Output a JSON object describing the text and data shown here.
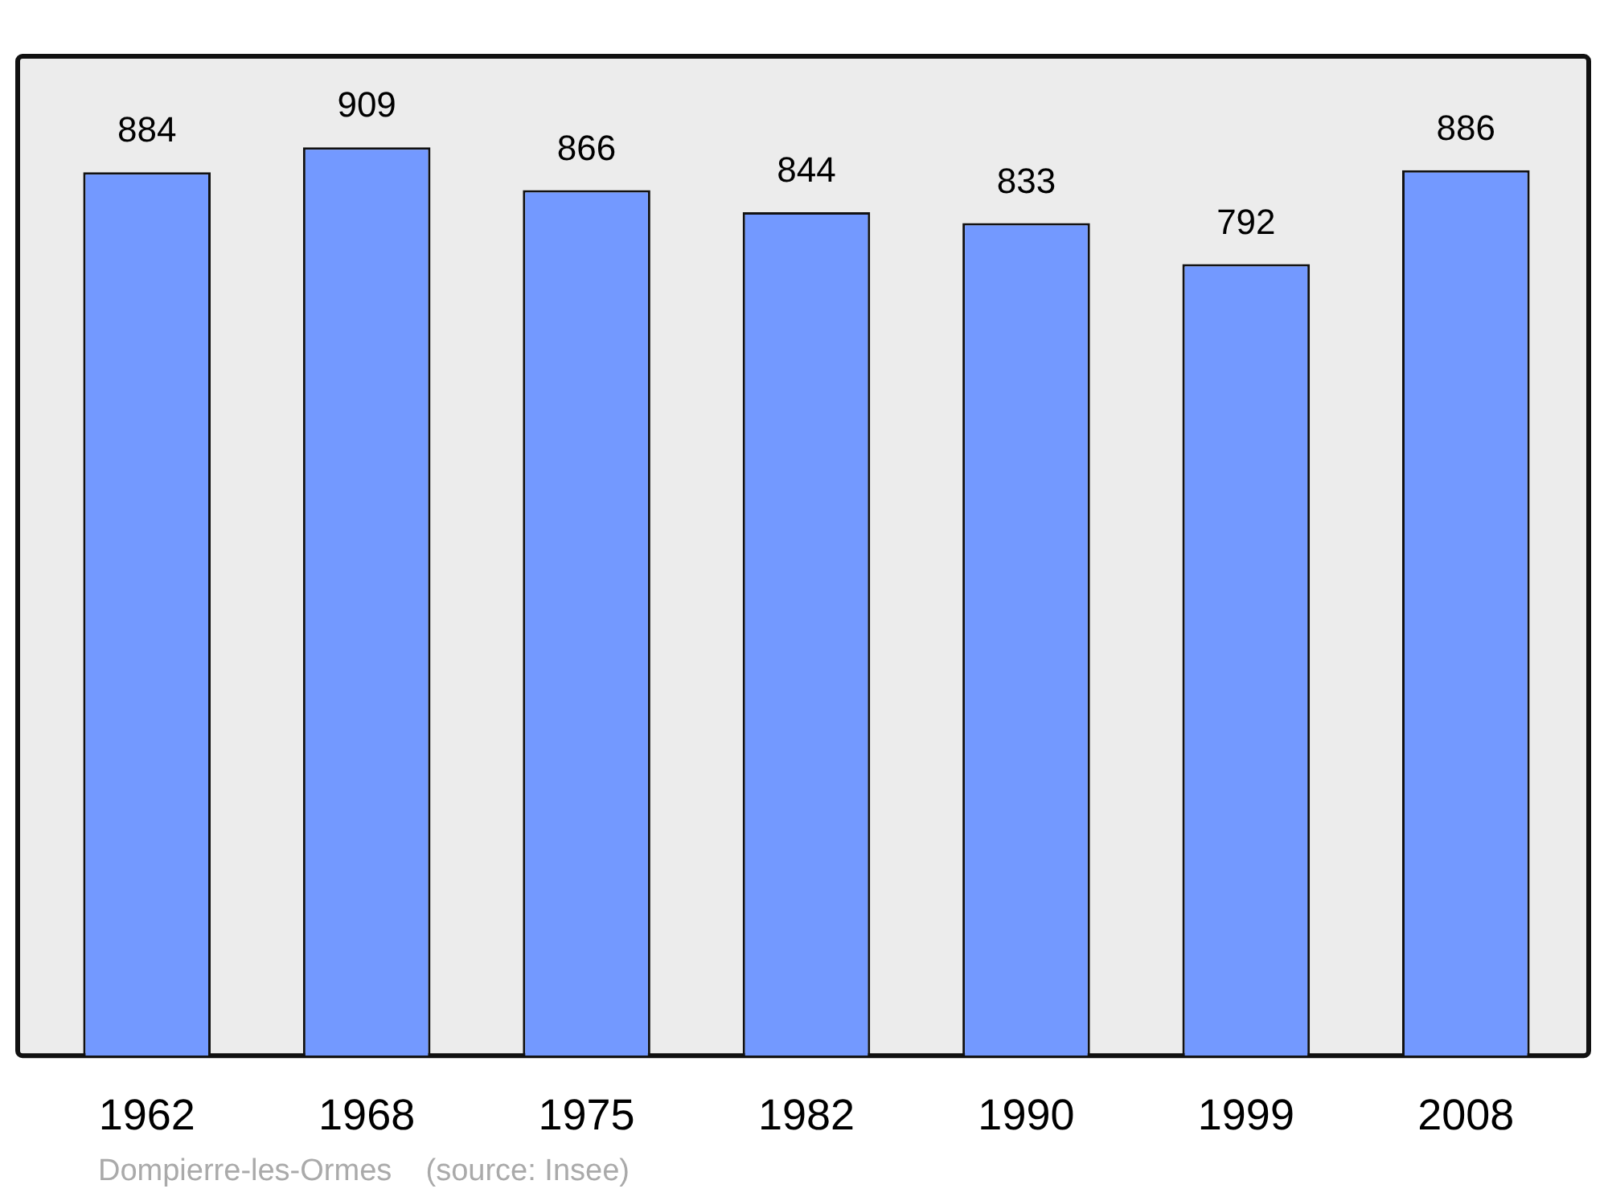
{
  "chart_data": {
    "type": "bar",
    "categories": [
      "1962",
      "1968",
      "1975",
      "1982",
      "1990",
      "1999",
      "2008"
    ],
    "values": [
      884,
      909,
      866,
      844,
      833,
      792,
      886
    ],
    "color": "#7399ff",
    "data_labels": true,
    "tick_labels": "x",
    "grid": false,
    "legend": false,
    "annotations": [
      "Dompierre-les-Ormes    (source: Insee)"
    ]
  }
}
